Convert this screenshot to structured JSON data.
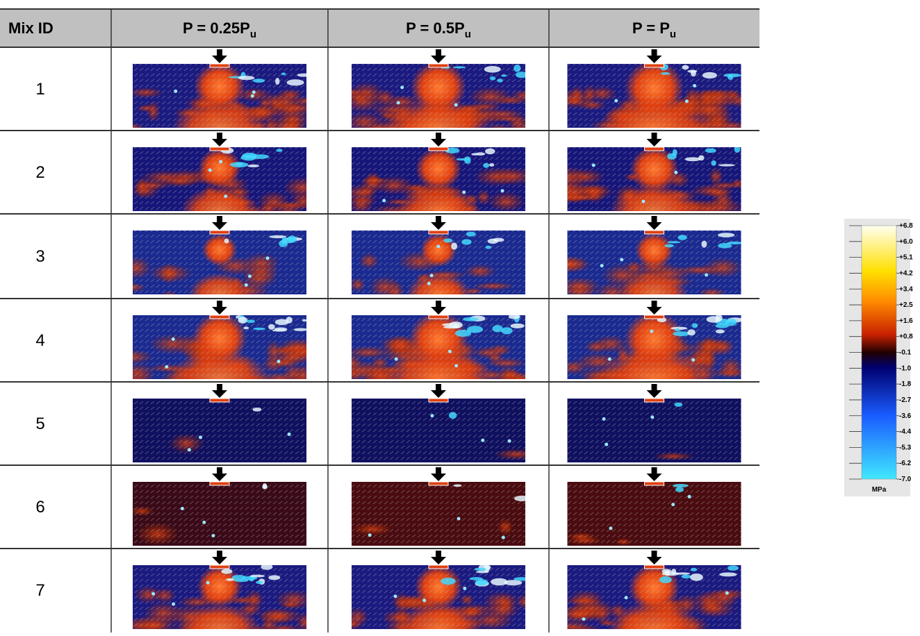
{
  "table": {
    "header": [
      "Mix ID",
      {
        "main": "P = 0.25P",
        "sub": "u"
      },
      {
        "main": "P = 0.5P",
        "sub": "u"
      },
      {
        "main": "P = P",
        "sub": "u"
      }
    ],
    "rows": [
      "1",
      "2",
      "3",
      "4",
      "5",
      "6",
      "7"
    ]
  },
  "colorbar": {
    "labels": [
      "+6.8",
      "+6.0",
      "+5.1",
      "+4.2",
      "+3.4",
      "+2.5",
      "+1.6",
      "+0.8",
      "-0.1",
      "-1.0",
      "-1.8",
      "-2.7",
      "-3.6",
      "-4.4",
      "-5.3",
      "-6.2",
      "-7.0"
    ],
    "unit": "MPa"
  }
}
